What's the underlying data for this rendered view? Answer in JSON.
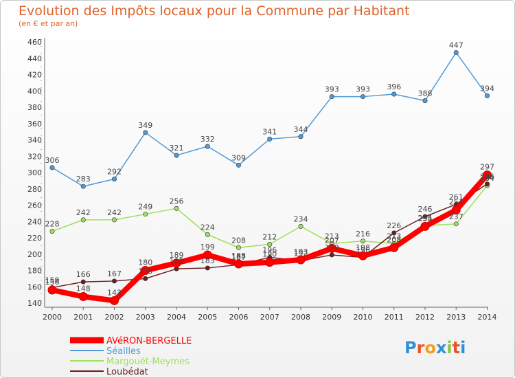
{
  "header": {
    "title": "Evolution des Impôts locaux pour la Commune par Habitant",
    "subtitle": "(en € et par an)"
  },
  "logo": {
    "text": "Proxiti",
    "colors": [
      "#2f8fd8",
      "#e8542a",
      "#f0a020",
      "#2f8fd8",
      "#8bc34a",
      "#e8542a",
      "#2f8fd8"
    ]
  },
  "chart_data": {
    "type": "line",
    "x": [
      "2000",
      "2001",
      "2002",
      "2003",
      "2004",
      "2005",
      "2006",
      "2007",
      "2008",
      "2009",
      "2010",
      "2011",
      "2012",
      "2013",
      "2014"
    ],
    "ylim": [
      140,
      460
    ],
    "yticks": [
      140,
      160,
      180,
      200,
      220,
      240,
      260,
      280,
      300,
      320,
      340,
      360,
      380,
      400,
      420,
      440,
      460
    ],
    "grid": false,
    "legend": "bottom-left",
    "series": [
      {
        "name": "Séailles",
        "color": "#4f9bd9",
        "values": [
          306,
          283,
          292,
          349,
          321,
          332,
          309,
          341,
          344,
          393,
          393,
          396,
          388,
          447,
          394
        ]
      },
      {
        "name": "Margouët-Meymes",
        "color": "#9ee05a",
        "values": [
          228,
          242,
          242,
          249,
          256,
          224,
          208,
          212,
          234,
          213,
          216,
          213,
          235,
          237,
          284
        ]
      },
      {
        "name": "Loubédat",
        "color": "#6b1f1f",
        "values": [
          159,
          166,
          167,
          170,
          182,
          183,
          187,
          196,
          192,
          199,
          196,
          226,
          246,
          261,
          286
        ]
      },
      {
        "name": "AVéRON-BERGELLE",
        "color": "#ff0000",
        "values": [
          156,
          148,
          143,
          180,
          189,
          199,
          188,
          190,
          193,
          207,
          198,
          208,
          234,
          254,
          297
        ]
      }
    ]
  }
}
